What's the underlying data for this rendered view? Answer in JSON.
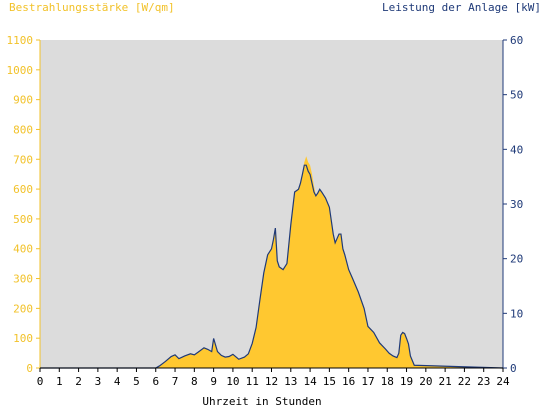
{
  "colors": {
    "plot_bg": "#dcdcdc",
    "irradiance_fill": "#ffc830",
    "power_line": "#1f3a78",
    "left_axis_text": "#f2c22a",
    "right_axis_text": "#1f3a78"
  },
  "chart_data": {
    "type": "area",
    "title": "",
    "left_axis": {
      "label": "Bestrahlungsstärke [W/qm]",
      "range": [
        0,
        1100
      ],
      "ticks": [
        0,
        100,
        200,
        300,
        400,
        500,
        600,
        700,
        800,
        900,
        1000,
        1100
      ]
    },
    "right_axis": {
      "label": "Leistung der Anlage [kW]",
      "range": [
        0,
        60
      ],
      "ticks": [
        0,
        10,
        20,
        30,
        40,
        50,
        60
      ]
    },
    "xlabel": "Uhrzeit in Stunden",
    "xlim": [
      0,
      24
    ],
    "xticks": [
      "0",
      "1",
      "2",
      "3",
      "4",
      "5",
      "6",
      "7",
      "8",
      "9",
      "10",
      "11",
      "12",
      "13",
      "14",
      "15",
      "16",
      "17",
      "18",
      "19",
      "20",
      "21",
      "22",
      "23",
      "24"
    ],
    "grid": false,
    "series": [
      {
        "name": "Bestrahlungsstärke [W/qm]",
        "axis": "left",
        "style": "filled-area",
        "x": [
          0,
          6,
          6.2,
          6.5,
          6.8,
          7.0,
          7.2,
          7.5,
          7.8,
          8.0,
          8.2,
          8.5,
          8.7,
          8.9,
          9.0,
          9.2,
          9.4,
          9.6,
          9.8,
          10.0,
          10.3,
          10.6,
          10.8,
          11.0,
          11.2,
          11.4,
          11.6,
          11.8,
          12.0,
          12.1,
          12.2,
          12.3,
          12.4,
          12.6,
          12.8,
          13.0,
          13.2,
          13.4,
          13.5,
          13.6,
          13.7,
          13.8,
          13.9,
          14.0,
          14.1,
          14.2,
          14.3,
          14.4,
          14.5,
          14.6,
          14.8,
          15.0,
          15.2,
          15.3,
          15.5,
          15.6,
          15.7,
          15.8,
          16.0,
          16.2,
          16.5,
          16.8,
          17.0,
          17.3,
          17.6,
          17.9,
          18.1,
          18.3,
          18.5,
          18.6,
          18.7,
          18.8,
          18.9,
          19.0,
          19.1,
          19.2,
          19.4,
          24
        ],
        "values": [
          0,
          0,
          8,
          22,
          38,
          44,
          32,
          40,
          48,
          44,
          54,
          68,
          62,
          55,
          95,
          55,
          42,
          36,
          38,
          45,
          30,
          36,
          48,
          82,
          135,
          230,
          320,
          380,
          400,
          430,
          470,
          360,
          340,
          330,
          350,
          480,
          590,
          600,
          620,
          650,
          690,
          710,
          690,
          680,
          650,
          610,
          580,
          590,
          600,
          590,
          570,
          540,
          450,
          420,
          450,
          450,
          400,
          380,
          330,
          300,
          255,
          200,
          140,
          120,
          85,
          65,
          50,
          40,
          35,
          50,
          110,
          120,
          115,
          100,
          80,
          40,
          10,
          0
        ]
      },
      {
        "name": "Leistung der Anlage [kW]",
        "axis": "right",
        "style": "line",
        "x": [
          0,
          6,
          6.2,
          6.5,
          6.8,
          7.0,
          7.2,
          7.5,
          7.8,
          8.0,
          8.2,
          8.5,
          8.7,
          8.9,
          9.0,
          9.2,
          9.4,
          9.6,
          9.8,
          10.0,
          10.3,
          10.6,
          10.8,
          11.0,
          11.2,
          11.4,
          11.6,
          11.8,
          12.0,
          12.1,
          12.2,
          12.3,
          12.4,
          12.6,
          12.8,
          13.0,
          13.2,
          13.4,
          13.5,
          13.6,
          13.7,
          13.8,
          13.9,
          14.0,
          14.1,
          14.2,
          14.3,
          14.4,
          14.5,
          14.6,
          14.8,
          15.0,
          15.2,
          15.3,
          15.5,
          15.6,
          15.7,
          15.8,
          16.0,
          16.2,
          16.5,
          16.8,
          17.0,
          17.3,
          17.6,
          17.9,
          18.1,
          18.3,
          18.5,
          18.6,
          18.7,
          18.8,
          18.9,
          19.0,
          19.1,
          19.2,
          19.4,
          24
        ],
        "values": [
          0,
          0,
          0.4,
          1.2,
          2.1,
          2.4,
          1.7,
          2.2,
          2.6,
          2.4,
          2.9,
          3.7,
          3.4,
          3.0,
          5.4,
          3.0,
          2.3,
          2.0,
          2.1,
          2.5,
          1.6,
          2.0,
          2.6,
          4.5,
          7.4,
          12.5,
          17.4,
          20.7,
          21.8,
          23.5,
          25.6,
          19.6,
          18.5,
          18.0,
          19.1,
          26.2,
          32.2,
          32.7,
          33.8,
          35.4,
          37.1,
          37.1,
          36.0,
          35.4,
          33.8,
          32.2,
          31.5,
          32.0,
          32.7,
          32.2,
          31.1,
          29.4,
          24.5,
          22.9,
          24.5,
          24.5,
          21.8,
          20.7,
          18.0,
          16.4,
          13.9,
          10.9,
          7.6,
          6.5,
          4.6,
          3.5,
          2.7,
          2.2,
          1.9,
          2.7,
          6.0,
          6.5,
          6.3,
          5.4,
          4.4,
          2.2,
          0.5,
          0
        ]
      }
    ]
  }
}
